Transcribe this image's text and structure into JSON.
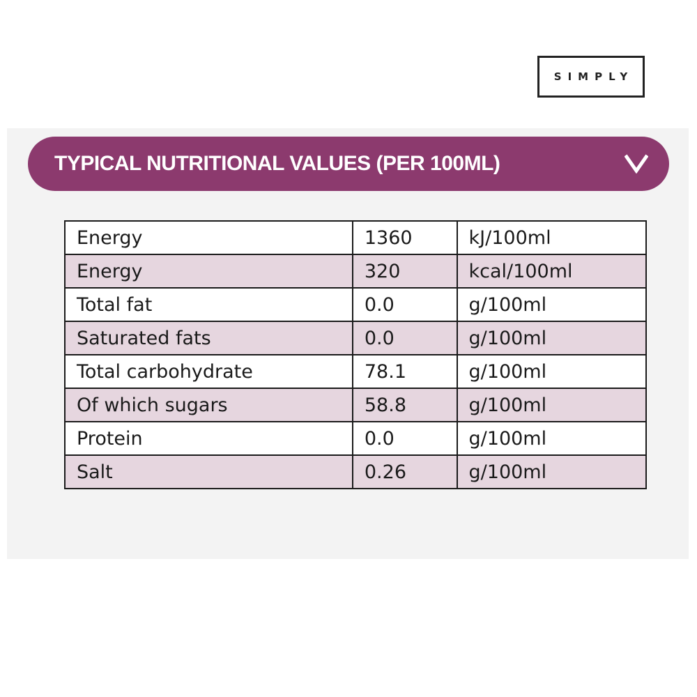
{
  "brand": {
    "logo_text": "SIMPLY"
  },
  "nutrition": {
    "header_title": "TYPICAL NUTRITIONAL VALUES (PER 100ML)",
    "expanded": true,
    "rows": [
      {
        "name": "Energy",
        "value": "1360",
        "unit": "kJ/100ml"
      },
      {
        "name": "Energy",
        "value": "320",
        "unit": "kcal/100ml"
      },
      {
        "name": "Total fat",
        "value": "0.0",
        "unit": "g/100ml"
      },
      {
        "name": "Saturated fats",
        "value": "0.0",
        "unit": "g/100ml"
      },
      {
        "name": "Total carbohydrate",
        "value": "78.1",
        "unit": "g/100ml"
      },
      {
        "name": "Of which sugars",
        "value": "58.8",
        "unit": "g/100ml"
      },
      {
        "name": "Protein",
        "value": "0.0",
        "unit": "g/100ml"
      },
      {
        "name": "Salt",
        "value": "0.26",
        "unit": "g/100ml"
      }
    ]
  },
  "colors": {
    "accent": "#8c3a6e",
    "row_alt": "#e6d6df",
    "panel_bg": "#f3f3f3",
    "border": "#1a1a1a"
  },
  "icons": {
    "toggle": "chevron-down-icon"
  }
}
